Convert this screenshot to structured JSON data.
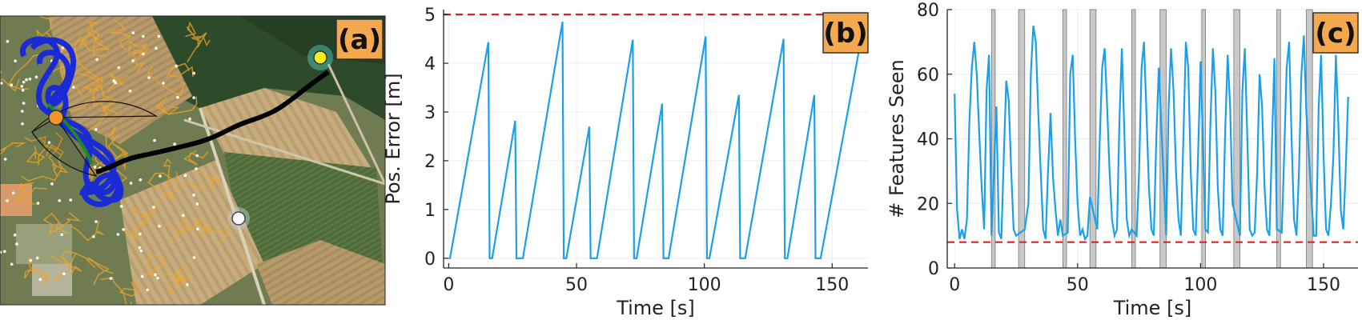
{
  "panels": {
    "a": {
      "badge": "(a)"
    },
    "b": {
      "badge": "(b)"
    },
    "c": {
      "badge": "(c)"
    }
  },
  "colors": {
    "series": "#1aa0ea",
    "threshold": "#e02020",
    "badge_bg": "#f4a94e",
    "badge_border": "#333333",
    "shade": "#9a9a9a",
    "grid": "#ececec",
    "path_black": "#000000",
    "path_blue": "#1a2bd6",
    "path_green": "#1c8a1c",
    "trajectory_orange": "#f5a623",
    "goal_yellow": "#f4ef1a",
    "start_orange": "#f4952a"
  },
  "map_panel": {
    "description_icons": [
      "orange-start-marker",
      "yellow-goal-marker",
      "white-waypoint-marker"
    ]
  },
  "chart_data": [
    {
      "type": "line",
      "panel": "(b)",
      "xlabel": "Time [s]",
      "ylabel": "Pos. Error [m]",
      "xlim": [
        -2,
        164
      ],
      "ylim": [
        -0.2,
        5.1
      ],
      "xticks": [
        0,
        50,
        100,
        150
      ],
      "yticks": [
        0,
        1,
        2,
        3,
        4,
        5
      ],
      "grid": true,
      "threshold": 5,
      "series": [
        {
          "x": [
            0,
            0.5,
            15.5,
            16,
            17,
            26,
            26.5,
            28.5,
            29,
            44.5,
            45,
            46,
            55,
            55.5,
            57.5,
            58,
            72,
            72.5,
            73.5,
            83.5,
            84,
            85.5,
            86,
            100.5,
            101,
            102,
            113.5,
            114,
            115.5,
            116,
            131,
            131.5,
            132.5,
            143,
            143.5,
            145,
            145.5,
            161
          ],
          "y": [
            0,
            0,
            4.43,
            0,
            0,
            2.82,
            0,
            0,
            0,
            4.85,
            0,
            0,
            2.7,
            0,
            0,
            0,
            4.48,
            0,
            0,
            3.17,
            0,
            0,
            0,
            4.55,
            0,
            0,
            3.35,
            0,
            0,
            0,
            4.5,
            0,
            0,
            3.35,
            0,
            0,
            0,
            4.4
          ]
        }
      ]
    },
    {
      "type": "line",
      "panel": "(c)",
      "xlabel": "Time [s]",
      "ylabel": "# Features Seen",
      "xlim": [
        -3,
        164
      ],
      "ylim": [
        0,
        80
      ],
      "xticks": [
        0,
        50,
        100,
        150
      ],
      "yticks": [
        0,
        20,
        40,
        60,
        80
      ],
      "grid": true,
      "threshold": 8,
      "shaded_intervals": [
        [
          15,
          16.5
        ],
        [
          26,
          28.5
        ],
        [
          44,
          45.5
        ],
        [
          55,
          57.5
        ],
        [
          72,
          73.5
        ],
        [
          83.5,
          86
        ],
        [
          100.5,
          102
        ],
        [
          113.5,
          116
        ],
        [
          131,
          132.5
        ],
        [
          143,
          145.5
        ]
      ],
      "series": [
        {
          "x": [
            0,
            1,
            2,
            3,
            4,
            5,
            6,
            7,
            8,
            9,
            10,
            11,
            12,
            13,
            14,
            15,
            17,
            18,
            19,
            20,
            21,
            22,
            23,
            24,
            25,
            28.5,
            30,
            31,
            32,
            33,
            34,
            35,
            36,
            37,
            38,
            39,
            40,
            41,
            42,
            43,
            44,
            46,
            47,
            48,
            49,
            50,
            51,
            52,
            53,
            54,
            55,
            58,
            59,
            60,
            61,
            62,
            63,
            64,
            65,
            66,
            67,
            68,
            69,
            70,
            71,
            72,
            74,
            75,
            76,
            77,
            78,
            79,
            80,
            81,
            82,
            83,
            86,
            87,
            88,
            89,
            90,
            91,
            92,
            93,
            94,
            95,
            96,
            97,
            98,
            99,
            100,
            102,
            103,
            104,
            105,
            106,
            107,
            108,
            109,
            110,
            111,
            112,
            113,
            116,
            117,
            118,
            119,
            120,
            121,
            122,
            123,
            124,
            125,
            126,
            127,
            128,
            129,
            130,
            131,
            133,
            134,
            135,
            136,
            137,
            138,
            139,
            140,
            141,
            142,
            143,
            146,
            147,
            148,
            149,
            150,
            151,
            152,
            153,
            154,
            155,
            156,
            157,
            158,
            159,
            160
          ],
          "y": [
            54,
            18,
            9,
            12,
            9,
            15,
            45,
            62,
            70,
            60,
            42,
            25,
            12,
            55,
            66,
            10,
            50,
            11,
            9,
            35,
            58,
            52,
            30,
            12,
            10,
            12,
            20,
            60,
            75,
            70,
            48,
            30,
            12,
            9,
            30,
            48,
            28,
            18,
            10,
            15,
            10,
            11,
            60,
            66,
            40,
            20,
            10,
            12,
            9,
            10,
            22,
            12,
            40,
            62,
            68,
            50,
            30,
            15,
            10,
            12,
            45,
            68,
            42,
            15,
            10,
            12,
            10,
            30,
            62,
            70,
            48,
            25,
            12,
            10,
            40,
            62,
            10,
            50,
            68,
            55,
            30,
            15,
            10,
            40,
            70,
            62,
            30,
            12,
            10,
            35,
            64,
            12,
            11,
            45,
            68,
            55,
            25,
            12,
            10,
            42,
            66,
            50,
            20,
            10,
            55,
            68,
            40,
            12,
            10,
            11,
            30,
            60,
            50,
            25,
            12,
            10,
            38,
            65,
            12,
            11,
            35,
            62,
            70,
            40,
            15,
            10,
            30,
            60,
            72,
            48,
            10,
            10,
            50,
            66,
            35,
            12,
            10,
            20,
            35,
            66,
            45,
            18,
            12,
            30,
            53
          ]
        }
      ]
    }
  ]
}
